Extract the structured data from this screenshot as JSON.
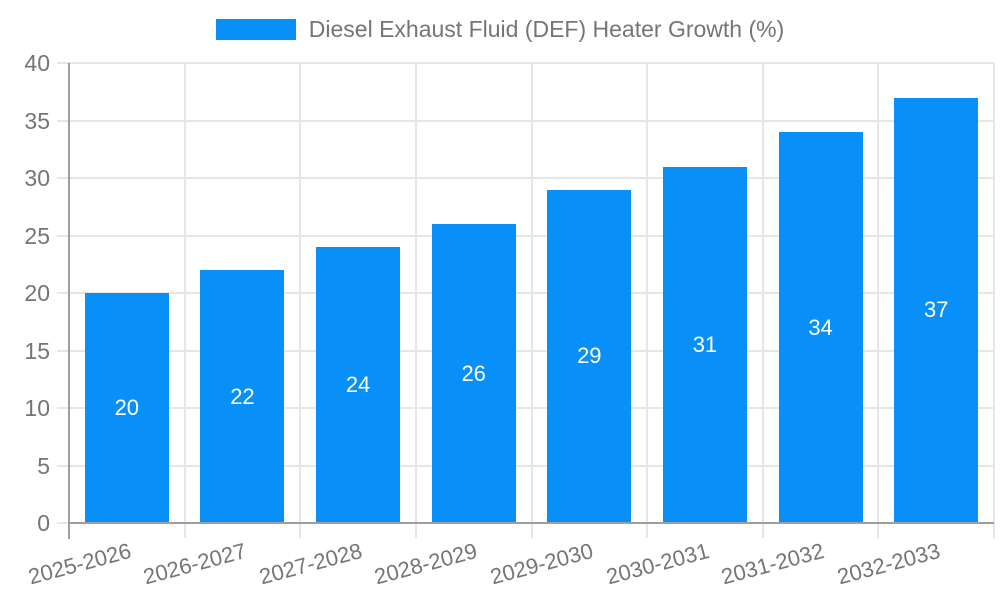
{
  "legend": {
    "label": "Diesel Exhaust Fluid (DEF) Heater Growth (%)",
    "swatch_color": "#0890f8"
  },
  "chart_data": {
    "type": "bar",
    "title": "Diesel Exhaust Fluid (DEF) Heater Growth (%)",
    "categories": [
      "2025-2026",
      "2026-2027",
      "2027-2028",
      "2028-2029",
      "2029-2030",
      "2030-2031",
      "2031-2032",
      "2032-2033"
    ],
    "values": [
      20,
      22,
      24,
      26,
      29,
      31,
      34,
      37
    ],
    "xlabel": "",
    "ylabel": "",
    "ylim": [
      0,
      40
    ],
    "yticks": [
      0,
      5,
      10,
      15,
      20,
      25,
      30,
      35,
      40
    ],
    "grid": true,
    "legend_position": "top",
    "x_label_rotation_deg": -15,
    "colors": {
      "bar": "#0890f8",
      "grid": "#e6e6e6",
      "axis": "#9e9e9e",
      "text": "#757575",
      "value_label": "#ffffff"
    }
  }
}
